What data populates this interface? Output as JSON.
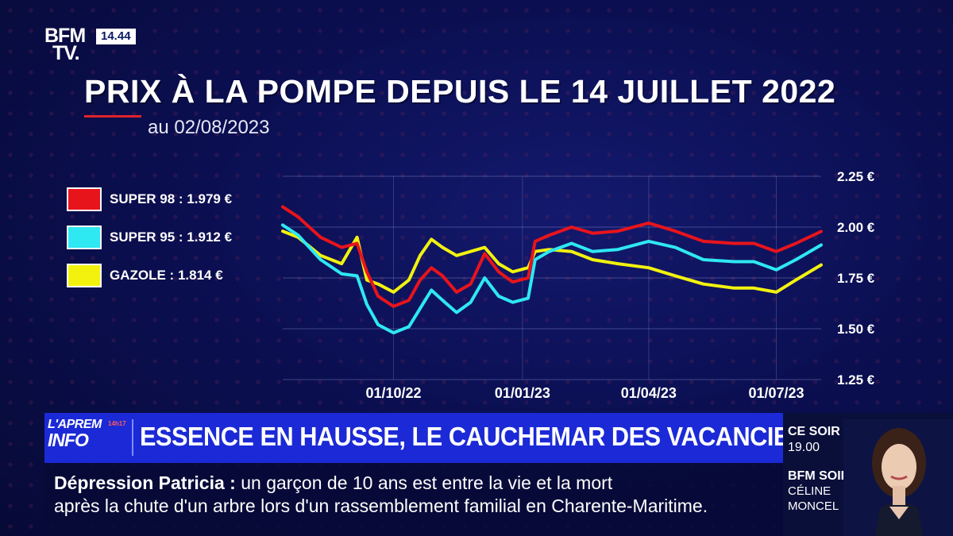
{
  "channel": {
    "logo_line1": "BFM",
    "logo_line2": "TV.",
    "clock": "14.44"
  },
  "chart_data": {
    "type": "line",
    "title": "PRIX À LA POMPE DEPUIS LE 14 JUILLET 2022",
    "subtitle": "au 02/08/2023",
    "xlabel": "",
    "ylabel": "",
    "x_ticks": [
      "01/10/22",
      "01/01/23",
      "01/04/23",
      "01/07/23"
    ],
    "y_ticks": [
      "2.25 €",
      "2.00 €",
      "1.75 €",
      "1.50 €",
      "1.25 €"
    ],
    "y_tick_values": [
      2.25,
      2.0,
      1.75,
      1.5,
      1.25
    ],
    "ylim": [
      1.25,
      2.25
    ],
    "x_range": [
      "2022-07-14",
      "2023-08-02"
    ],
    "grid": true,
    "legend_position": "left",
    "series": [
      {
        "name": "SUPER 98",
        "label": "SUPER 98 : 1.979 €",
        "color": "#e8141c",
        "points": [
          [
            "2022-07-14",
            2.1
          ],
          [
            "2022-07-25",
            2.05
          ],
          [
            "2022-08-10",
            1.95
          ],
          [
            "2022-08-25",
            1.9
          ],
          [
            "2022-09-05",
            1.92
          ],
          [
            "2022-09-12",
            1.78
          ],
          [
            "2022-09-20",
            1.66
          ],
          [
            "2022-10-01",
            1.61
          ],
          [
            "2022-10-12",
            1.64
          ],
          [
            "2022-10-20",
            1.74
          ],
          [
            "2022-10-28",
            1.8
          ],
          [
            "2022-11-05",
            1.76
          ],
          [
            "2022-11-15",
            1.68
          ],
          [
            "2022-11-25",
            1.72
          ],
          [
            "2022-12-05",
            1.87
          ],
          [
            "2022-12-15",
            1.78
          ],
          [
            "2022-12-25",
            1.73
          ],
          [
            "2023-01-05",
            1.75
          ],
          [
            "2023-01-10",
            1.93
          ],
          [
            "2023-01-20",
            1.96
          ],
          [
            "2023-02-05",
            2.0
          ],
          [
            "2023-02-20",
            1.97
          ],
          [
            "2023-03-10",
            1.98
          ],
          [
            "2023-04-01",
            2.02
          ],
          [
            "2023-04-20",
            1.98
          ],
          [
            "2023-05-10",
            1.93
          ],
          [
            "2023-06-01",
            1.92
          ],
          [
            "2023-06-15",
            1.92
          ],
          [
            "2023-07-01",
            1.88
          ],
          [
            "2023-07-15",
            1.92
          ],
          [
            "2023-08-02",
            1.979
          ]
        ]
      },
      {
        "name": "SUPER 95",
        "label": "SUPER 95 : 1.912 €",
        "color": "#2ee8f2",
        "points": [
          [
            "2022-07-14",
            2.01
          ],
          [
            "2022-07-25",
            1.96
          ],
          [
            "2022-08-10",
            1.84
          ],
          [
            "2022-08-25",
            1.77
          ],
          [
            "2022-09-05",
            1.76
          ],
          [
            "2022-09-12",
            1.62
          ],
          [
            "2022-09-20",
            1.52
          ],
          [
            "2022-10-01",
            1.48
          ],
          [
            "2022-10-12",
            1.51
          ],
          [
            "2022-10-20",
            1.6
          ],
          [
            "2022-10-28",
            1.69
          ],
          [
            "2022-11-05",
            1.64
          ],
          [
            "2022-11-15",
            1.58
          ],
          [
            "2022-11-25",
            1.63
          ],
          [
            "2022-12-05",
            1.75
          ],
          [
            "2022-12-15",
            1.66
          ],
          [
            "2022-12-25",
            1.63
          ],
          [
            "2023-01-05",
            1.65
          ],
          [
            "2023-01-10",
            1.84
          ],
          [
            "2023-01-20",
            1.88
          ],
          [
            "2023-02-05",
            1.92
          ],
          [
            "2023-02-20",
            1.88
          ],
          [
            "2023-03-10",
            1.89
          ],
          [
            "2023-04-01",
            1.93
          ],
          [
            "2023-04-20",
            1.9
          ],
          [
            "2023-05-10",
            1.84
          ],
          [
            "2023-06-01",
            1.83
          ],
          [
            "2023-06-15",
            1.83
          ],
          [
            "2023-07-01",
            1.79
          ],
          [
            "2023-07-15",
            1.84
          ],
          [
            "2023-08-02",
            1.912
          ]
        ]
      },
      {
        "name": "GAZOLE",
        "label": "GAZOLE : 1.814 €",
        "color": "#f2f20e",
        "points": [
          [
            "2022-07-14",
            1.98
          ],
          [
            "2022-07-25",
            1.95
          ],
          [
            "2022-08-10",
            1.86
          ],
          [
            "2022-08-25",
            1.82
          ],
          [
            "2022-09-05",
            1.95
          ],
          [
            "2022-09-12",
            1.74
          ],
          [
            "2022-09-20",
            1.72
          ],
          [
            "2022-10-01",
            1.68
          ],
          [
            "2022-10-12",
            1.74
          ],
          [
            "2022-10-20",
            1.86
          ],
          [
            "2022-10-28",
            1.94
          ],
          [
            "2022-11-05",
            1.9
          ],
          [
            "2022-11-15",
            1.86
          ],
          [
            "2022-11-25",
            1.88
          ],
          [
            "2022-12-05",
            1.9
          ],
          [
            "2022-12-15",
            1.82
          ],
          [
            "2022-12-25",
            1.78
          ],
          [
            "2023-01-05",
            1.8
          ],
          [
            "2023-01-10",
            1.88
          ],
          [
            "2023-01-20",
            1.89
          ],
          [
            "2023-02-05",
            1.88
          ],
          [
            "2023-02-20",
            1.84
          ],
          [
            "2023-03-10",
            1.82
          ],
          [
            "2023-04-01",
            1.8
          ],
          [
            "2023-04-20",
            1.76
          ],
          [
            "2023-05-10",
            1.72
          ],
          [
            "2023-06-01",
            1.7
          ],
          [
            "2023-06-15",
            1.7
          ],
          [
            "2023-07-01",
            1.68
          ],
          [
            "2023-07-15",
            1.74
          ],
          [
            "2023-08-02",
            1.814
          ]
        ]
      }
    ]
  },
  "banner": {
    "program_line1": "L'APREM",
    "program_line2": "INFO",
    "program_time": "14h17",
    "headline": "ESSENCE EN HAUSSE, LE CAUCHEMAR DES VACANCIERS"
  },
  "ticker": {
    "lead": "Dépression Patricia",
    "separator": ":",
    "line1": "un garçon de 10 ans est entre la vie et la mort",
    "line2": "après la chute d'un arbre lors d'un rassemblement familial en Charente-Maritime."
  },
  "upcoming": {
    "label": "CE SOIR",
    "time": "19.00",
    "show": "BFM SOIR",
    "host_first": "CÉLINE",
    "host_last": "MONCEL"
  }
}
